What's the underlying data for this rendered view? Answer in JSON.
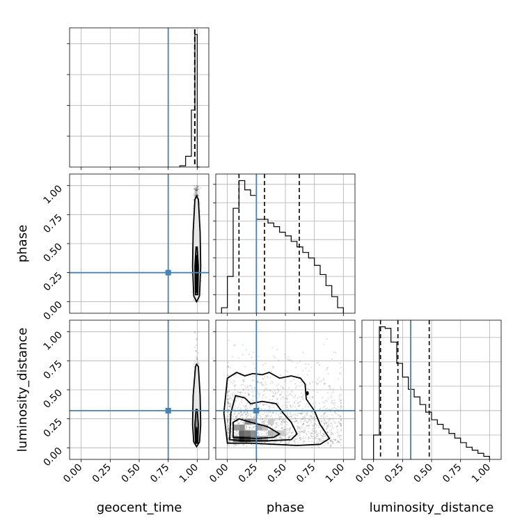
{
  "chart_data": {
    "type": "corner",
    "parameters": [
      "geocent_time",
      "phase",
      "luminosity_distance"
    ],
    "axis_labels": {
      "x": [
        "geocent_time",
        "phase",
        "luminosity_distance"
      ],
      "y": [
        "phase",
        "luminosity_distance"
      ]
    },
    "ticks": [
      0.0,
      0.25,
      0.5,
      0.75,
      1.0
    ],
    "tick_labels": [
      "0.00",
      "0.25",
      "0.50",
      "0.75",
      "1.00"
    ],
    "xlim": [
      -0.1,
      1.1
    ],
    "truths": {
      "geocent_time": 0.75,
      "phase": 0.25,
      "luminosity_distance": 0.32
    },
    "truth_color": "#4682b4",
    "grid": true,
    "diagonal": [
      {
        "param": "geocent_time",
        "bin_edges": [
          0.85,
          0.9,
          0.95,
          0.98,
          1.0,
          1.02
        ],
        "counts": [
          0.04,
          0.35,
          1.85,
          4.3,
          0
        ],
        "quantiles": [
          0.98,
          0.985,
          0.99
        ]
      },
      {
        "param": "phase",
        "bin_edges": [
          -0.05,
          0.0,
          0.05,
          0.1,
          0.15,
          0.2,
          0.25,
          0.3,
          0.35,
          0.4,
          0.45,
          0.5,
          0.55,
          0.6,
          0.65,
          0.7,
          0.75,
          0.8,
          0.85,
          0.9,
          0.95,
          1.0
        ],
        "counts": [
          0.15,
          1.0,
          2.85,
          3.6,
          3.35,
          3.2,
          2.55,
          2.55,
          2.45,
          2.35,
          2.2,
          2.1,
          1.95,
          1.8,
          1.65,
          1.5,
          1.3,
          1.05,
          0.75,
          0.45,
          0.15
        ],
        "quantiles": [
          0.1,
          0.32,
          0.62
        ]
      },
      {
        "param": "luminosity_distance",
        "bin_edges": [
          0.0,
          0.05,
          0.1,
          0.15,
          0.2,
          0.25,
          0.3,
          0.35,
          0.4,
          0.45,
          0.5,
          0.55,
          0.6,
          0.65,
          0.7,
          0.75,
          0.8,
          0.85,
          0.9,
          0.95,
          1.0
        ],
        "counts": [
          0.8,
          4.35,
          4.3,
          3.85,
          3.15,
          2.7,
          2.3,
          2.05,
          1.8,
          1.55,
          1.3,
          1.15,
          1.0,
          0.85,
          0.7,
          0.55,
          0.4,
          0.3,
          0.2,
          0.1
        ],
        "quantiles": [
          0.06,
          0.21,
          0.48
        ]
      }
    ],
    "pairs": [
      {
        "x": "geocent_time",
        "y": "phase"
      },
      {
        "x": "geocent_time",
        "y": "luminosity_distance"
      },
      {
        "x": "phase",
        "y": "luminosity_distance"
      }
    ]
  }
}
